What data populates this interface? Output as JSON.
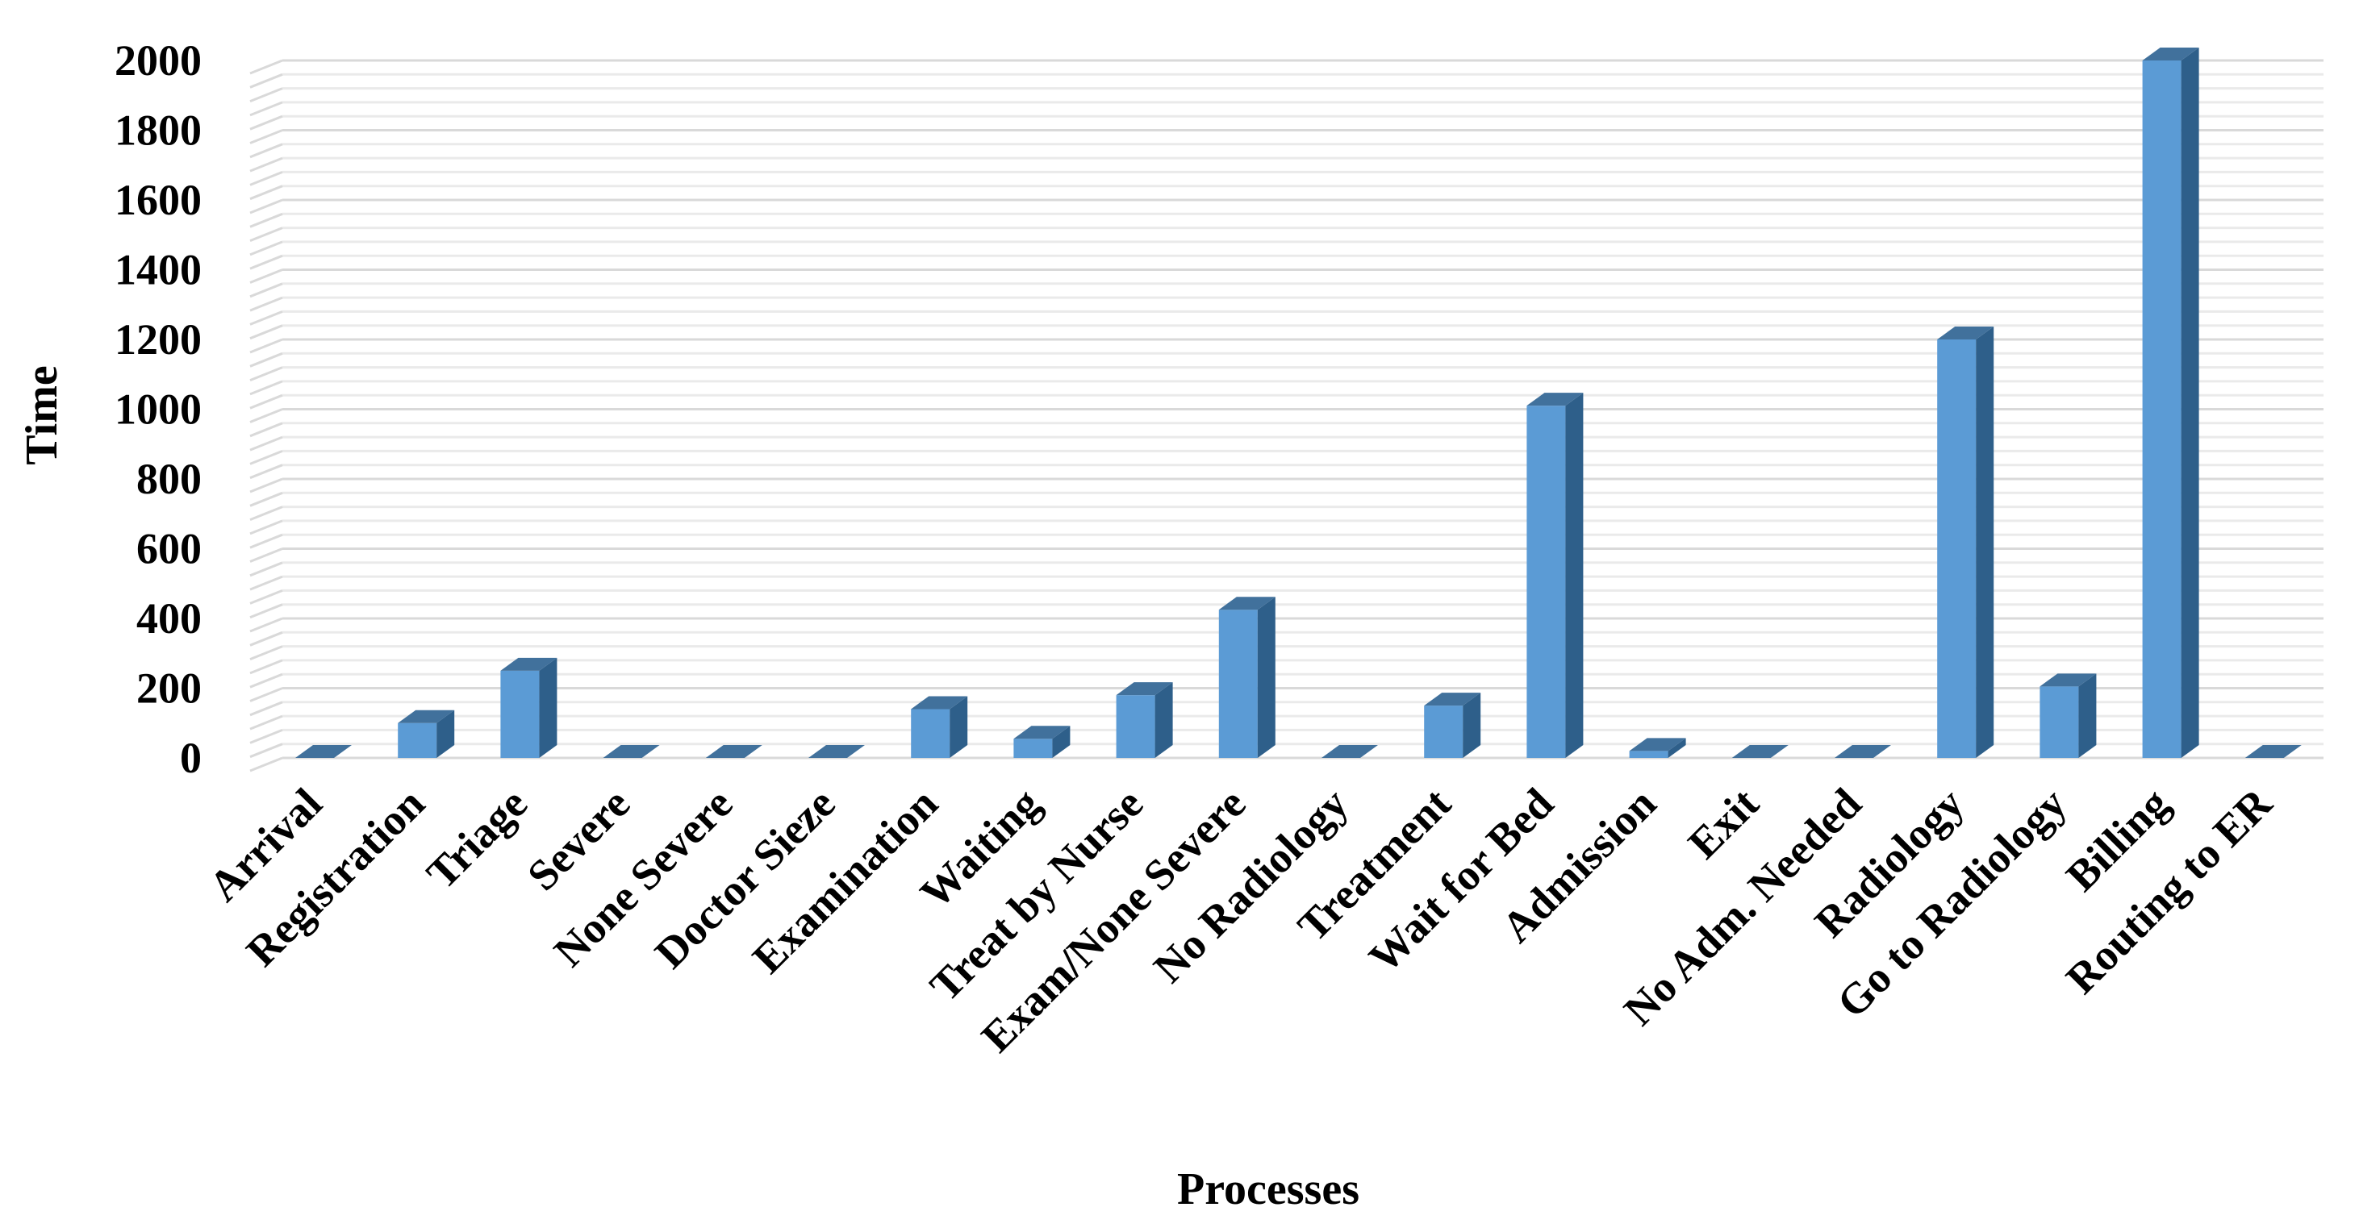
{
  "chart_data": {
    "type": "bar",
    "title": "",
    "xlabel": "Processes",
    "ylabel": "Time",
    "ylim": [
      0,
      2000
    ],
    "yticks": [
      0,
      200,
      400,
      600,
      800,
      1000,
      1200,
      1400,
      1600,
      1800,
      2000
    ],
    "grid": true,
    "style": "3d-column",
    "bar_color": "#5b9bd5",
    "bar_side_color": "#2e5f8a",
    "bar_top_color": "#41719c",
    "grid_color": "#d9d9d9",
    "categories": [
      "Arrival",
      "Registration",
      "Triage",
      "Severe",
      "None Severe",
      "Doctor Sieze",
      "Examination",
      "Waiting",
      "Treat by Nurse",
      "Exam/None Severe",
      "No Radiology",
      "Treatment",
      "Wait for Bed",
      "Admission",
      "Exit",
      "No Adm. Needed",
      "Radiology",
      "Go to Radiology",
      "Billing",
      "Routing to ER"
    ],
    "values": [
      0,
      100,
      250,
      0,
      0,
      0,
      140,
      55,
      180,
      425,
      0,
      150,
      1010,
      20,
      0,
      0,
      1200,
      205,
      2000,
      0
    ]
  }
}
